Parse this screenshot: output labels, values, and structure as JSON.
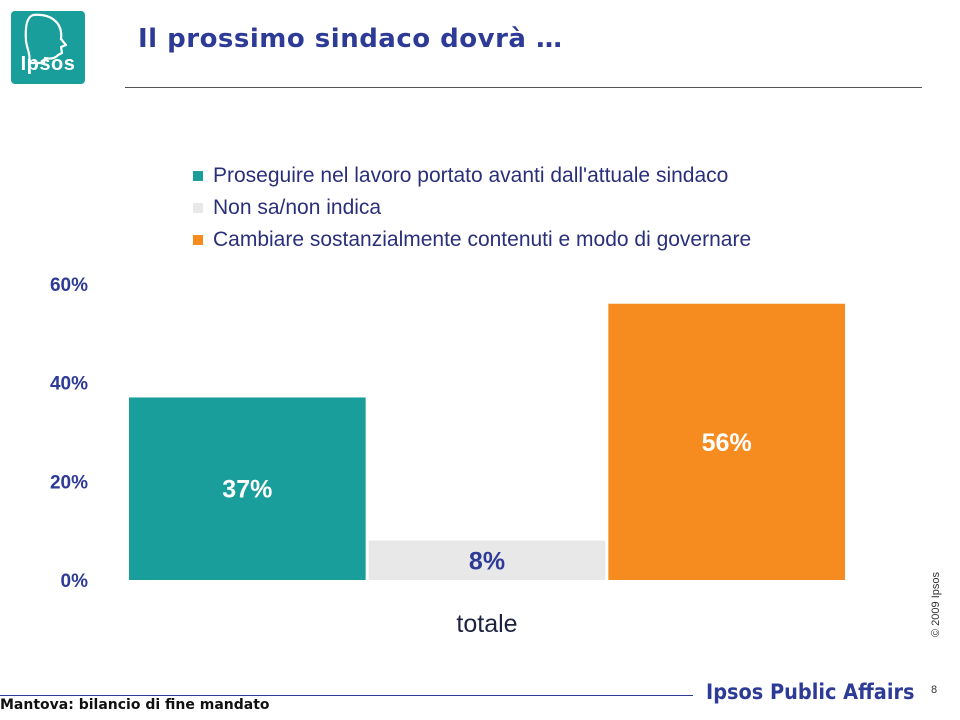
{
  "logo": {
    "text": "Ipsos",
    "color": "#1a9e9b"
  },
  "header": {
    "title": "Il prossimo sindaco dovrà …"
  },
  "chart_data": {
    "type": "bar",
    "categories": [
      "totale"
    ],
    "series": [
      {
        "name": "Proseguire nel lavoro portato avanti dall'attuale sindaco",
        "values": [
          37
        ],
        "label": "37%",
        "color": "#1a9e9b",
        "label_color": "#ffffff"
      },
      {
        "name": "Non sa/non indica",
        "values": [
          8
        ],
        "label": "8%",
        "color": "#e8e8e8",
        "label_color": "#2d3a96"
      },
      {
        "name": "Cambiare sostanzialmente contenuti e modo di governare",
        "values": [
          56
        ],
        "label": "56%",
        "color": "#f68b1f",
        "label_color": "#ffffff"
      }
    ],
    "y_ticks": [
      {
        "value": 0,
        "label": "0%"
      },
      {
        "value": 20,
        "label": "20%"
      },
      {
        "value": 40,
        "label": "40%"
      },
      {
        "value": 60,
        "label": "60%"
      }
    ],
    "ylim": [
      0,
      60
    ],
    "legend_position": "top",
    "grid": false,
    "title": "",
    "xlabel": "",
    "ylabel": ""
  },
  "footer": {
    "left_text": "Mantova: bilancio di fine mandato",
    "brand": "Ipsos Public Affairs",
    "copyright": "© 2009 Ipsos",
    "page_number": "8"
  }
}
